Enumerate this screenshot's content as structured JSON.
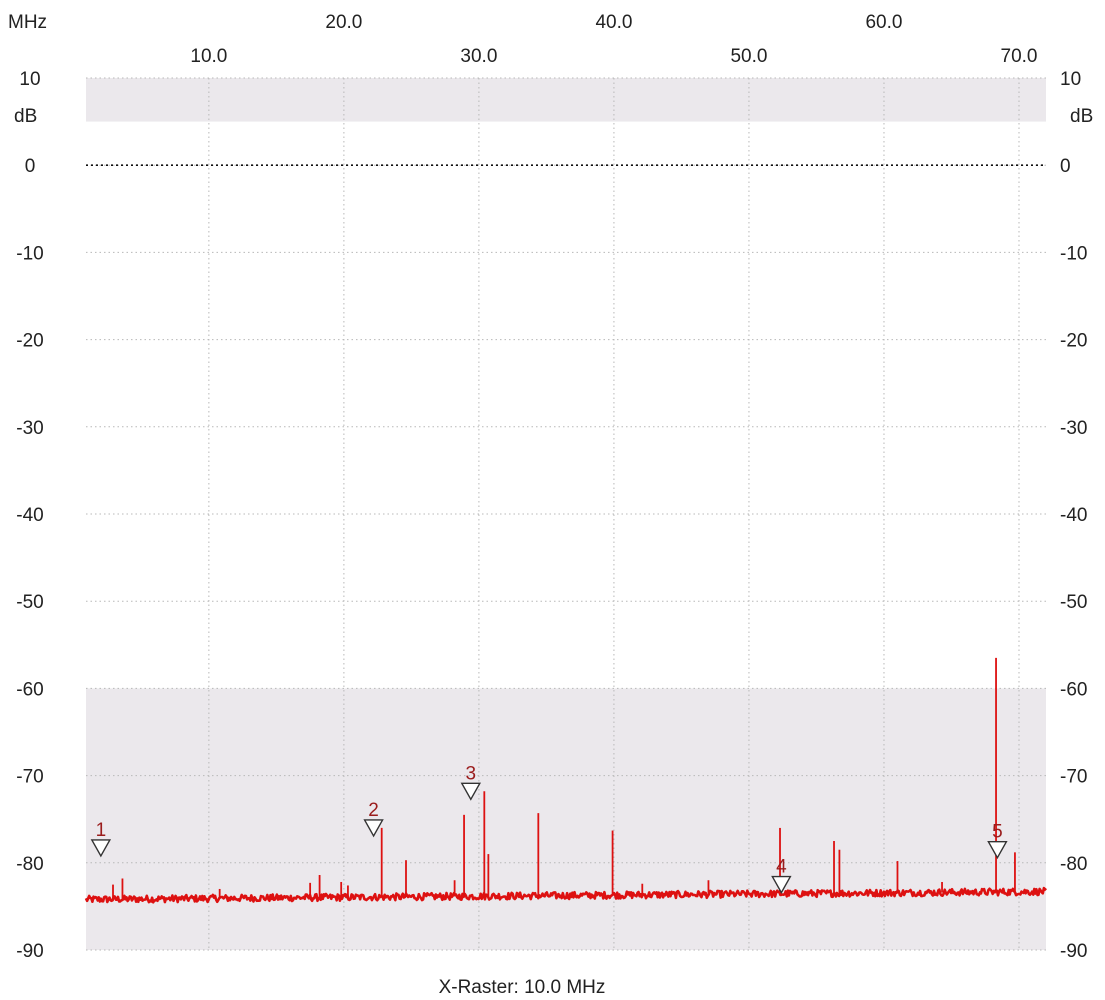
{
  "chart_data": {
    "type": "line",
    "title": "",
    "x_unit_label": "MHz",
    "y_unit_label": "dB",
    "x_raster_label": "X-Raster: 10.0 MHz",
    "xlim": [
      0.9,
      72.0
    ],
    "ylim": [
      -90,
      10
    ],
    "x_ticks_top_row": [
      "20.0",
      "40.0",
      "60.0"
    ],
    "x_ticks_bottom_row": [
      "10.0",
      "30.0",
      "50.0",
      "70.0"
    ],
    "x_ticks_top_values": [
      20,
      40,
      60
    ],
    "x_ticks_bottom_values": [
      10,
      30,
      50,
      70
    ],
    "y_ticks": [
      "10",
      "0",
      "-10",
      "-20",
      "-30",
      "-40",
      "-50",
      "-60",
      "-70",
      "-80",
      "-90"
    ],
    "y_tick_values": [
      10,
      0,
      -10,
      -20,
      -30,
      -40,
      -50,
      -60,
      -70,
      -80,
      -90
    ],
    "grid": true,
    "reference_line_y": 0,
    "shaded_bands": [
      {
        "y_from": 5,
        "y_to": 10
      },
      {
        "y_from": -90,
        "y_to": -60
      }
    ],
    "colors": {
      "trace": "#dd1111",
      "band": "#ebe8ec",
      "marker": "#9a1c1c",
      "grid": "#b8b8b8"
    },
    "series": [
      {
        "noise_floor_start_db": -84.2,
        "noise_floor_end_db": -83.3,
        "spikes": [
          {
            "x": 2.9,
            "y": -82.5
          },
          {
            "x": 3.6,
            "y": -81.8
          },
          {
            "x": 10.8,
            "y": -83.0
          },
          {
            "x": 17.5,
            "y": -82.3
          },
          {
            "x": 18.2,
            "y": -81.4
          },
          {
            "x": 19.8,
            "y": -82.2
          },
          {
            "x": 20.3,
            "y": -82.6
          },
          {
            "x": 22.8,
            "y": -76.0
          },
          {
            "x": 24.6,
            "y": -79.7
          },
          {
            "x": 28.2,
            "y": -82.0
          },
          {
            "x": 28.9,
            "y": -74.5
          },
          {
            "x": 30.4,
            "y": -71.8
          },
          {
            "x": 30.7,
            "y": -79.0
          },
          {
            "x": 34.4,
            "y": -74.3
          },
          {
            "x": 39.9,
            "y": -76.3
          },
          {
            "x": 42.1,
            "y": -82.4
          },
          {
            "x": 47.0,
            "y": -82.0
          },
          {
            "x": 52.3,
            "y": -76.0
          },
          {
            "x": 56.3,
            "y": -77.5
          },
          {
            "x": 56.7,
            "y": -78.5
          },
          {
            "x": 61.0,
            "y": -79.8
          },
          {
            "x": 64.3,
            "y": -82.2
          },
          {
            "x": 68.3,
            "y": -56.5
          },
          {
            "x": 69.7,
            "y": -78.8
          }
        ]
      }
    ],
    "markers": [
      {
        "label": "1",
        "x": 2.0,
        "y": -78.3
      },
      {
        "label": "2",
        "x": 22.2,
        "y": -76.0
      },
      {
        "label": "3",
        "x": 29.4,
        "y": -71.8
      },
      {
        "label": "4",
        "x": 52.4,
        "y": -82.5
      },
      {
        "label": "5",
        "x": 68.4,
        "y": -78.5
      }
    ]
  }
}
